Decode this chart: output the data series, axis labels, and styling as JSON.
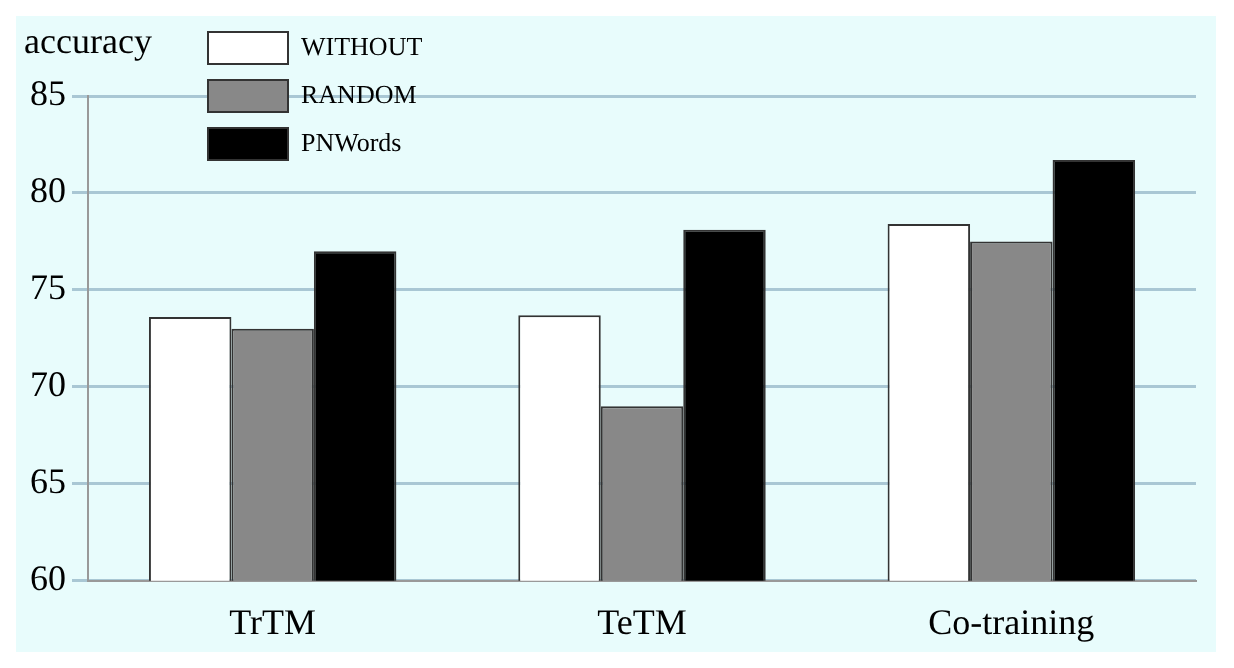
{
  "chart_data": {
    "type": "bar",
    "ylabel": "accuracy",
    "categories": [
      "TrTM",
      "TeTM",
      "Co-training"
    ],
    "series": [
      {
        "name": "WITHOUT",
        "color": "#ffffff",
        "values": [
          73.6,
          73.7,
          78.4
        ]
      },
      {
        "name": "RANDOM",
        "color": "#888888",
        "values": [
          73.0,
          69.0,
          77.5
        ]
      },
      {
        "name": "PNWords",
        "color": "#000000",
        "values": [
          77.0,
          78.1,
          81.7
        ]
      }
    ],
    "ylim": [
      60,
      85
    ],
    "yticks": [
      60,
      65,
      70,
      75,
      80,
      85
    ],
    "grid": "y",
    "legend": "top left"
  }
}
